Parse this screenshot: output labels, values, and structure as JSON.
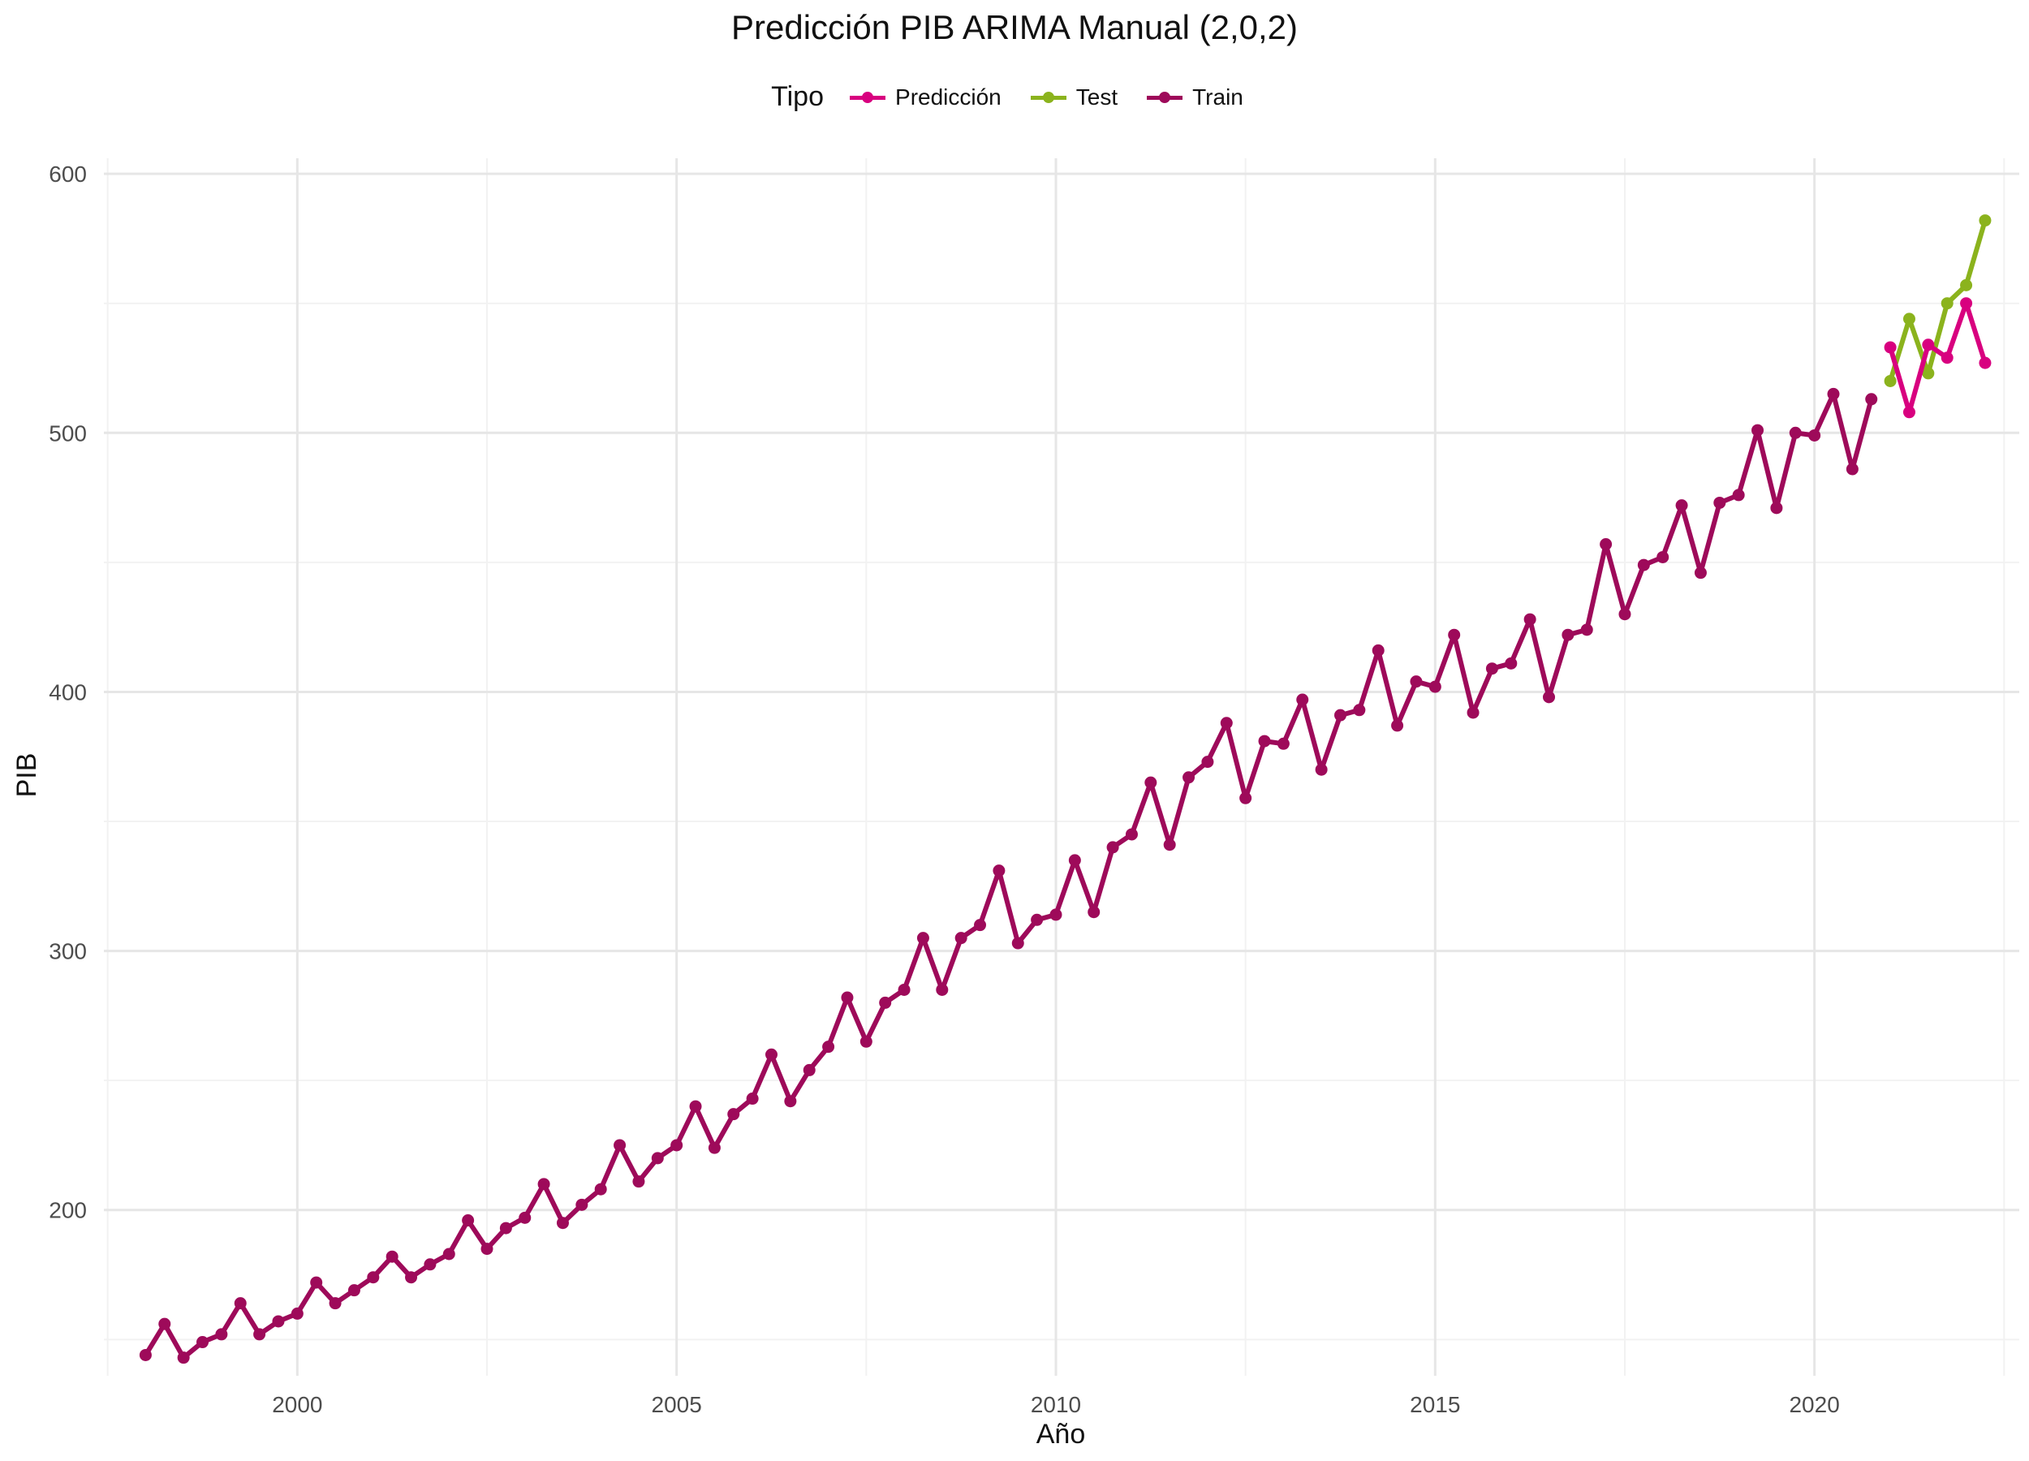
{
  "chart_data": {
    "type": "line",
    "title": "Predicción PIB ARIMA Manual (2,0,2)",
    "xlabel": "Año",
    "ylabel": "PIB",
    "xlim": [
      1997.45,
      2022.7
    ],
    "ylim": [
      136,
      606
    ],
    "x_ticks": [
      2000,
      2005,
      2010,
      2015,
      2020
    ],
    "y_ticks": [
      200,
      300,
      400,
      500,
      600
    ],
    "grid": true,
    "legend": {
      "title": "Tipo",
      "placement": "top"
    },
    "series": [
      {
        "name": "Predicción",
        "color": "#D8007F",
        "x": [
          2021.0,
          2021.25,
          2021.5,
          2021.75,
          2022.0,
          2022.25
        ],
        "y": [
          533,
          508,
          534,
          529,
          550,
          527
        ]
      },
      {
        "name": "Test",
        "color": "#8BB31D",
        "x": [
          2021.0,
          2021.25,
          2021.5,
          2021.75,
          2022.0,
          2022.25
        ],
        "y": [
          520,
          544,
          523,
          550,
          557,
          582
        ]
      },
      {
        "name": "Train",
        "color": "#9E0A5A",
        "x": [
          1998.0,
          1998.25,
          1998.5,
          1998.75,
          1999.0,
          1999.25,
          1999.5,
          1999.75,
          2000.0,
          2000.25,
          2000.5,
          2000.75,
          2001.0,
          2001.25,
          2001.5,
          2001.75,
          2002.0,
          2002.25,
          2002.5,
          2002.75,
          2003.0,
          2003.25,
          2003.5,
          2003.75,
          2004.0,
          2004.25,
          2004.5,
          2004.75,
          2005.0,
          2005.25,
          2005.5,
          2005.75,
          2006.0,
          2006.25,
          2006.5,
          2006.75,
          2007.0,
          2007.25,
          2007.5,
          2007.75,
          2008.0,
          2008.25,
          2008.5,
          2008.75,
          2009.0,
          2009.25,
          2009.5,
          2009.75,
          2010.0,
          2010.25,
          2010.5,
          2010.75,
          2011.0,
          2011.25,
          2011.5,
          2011.75,
          2012.0,
          2012.25,
          2012.5,
          2012.75,
          2013.0,
          2013.25,
          2013.5,
          2013.75,
          2014.0,
          2014.25,
          2014.5,
          2014.75,
          2015.0,
          2015.25,
          2015.5,
          2015.75,
          2016.0,
          2016.25,
          2016.5,
          2016.75,
          2017.0,
          2017.25,
          2017.5,
          2017.75,
          2018.0,
          2018.25,
          2018.5,
          2018.75,
          2019.0,
          2019.25,
          2019.5,
          2019.75,
          2020.0,
          2020.25,
          2020.5,
          2020.75
        ],
        "y": [
          144,
          156,
          143,
          149,
          152,
          164,
          152,
          157,
          160,
          172,
          164,
          169,
          174,
          182,
          174,
          179,
          183,
          196,
          185,
          193,
          197,
          210,
          195,
          202,
          208,
          225,
          211,
          220,
          225,
          240,
          224,
          237,
          243,
          260,
          242,
          254,
          263,
          282,
          265,
          280,
          285,
          305,
          285,
          305,
          310,
          331,
          303,
          312,
          314,
          335,
          315,
          340,
          345,
          365,
          341,
          367,
          373,
          388,
          359,
          381,
          380,
          397,
          370,
          391,
          393,
          416,
          387,
          404,
          402,
          422,
          392,
          409,
          411,
          428,
          398,
          422,
          424,
          457,
          430,
          449,
          452,
          472,
          446,
          473,
          476,
          501,
          471,
          500,
          499,
          515,
          486,
          513
        ]
      }
    ]
  }
}
